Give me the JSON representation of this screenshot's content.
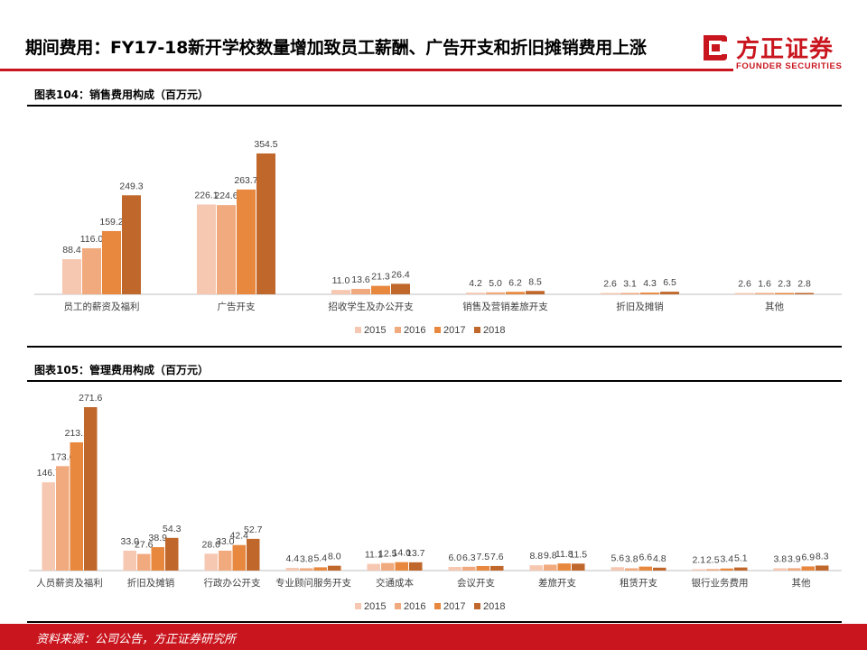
{
  "header": {
    "title": "期间费用：FY17-18新开学校数量增加致员工薪酬、广告开支和折旧摊销费用上涨"
  },
  "logo": {
    "name_cn": "方正证券",
    "name_en": "FOUNDER SECURITIES"
  },
  "colors": {
    "brand": "#c9151e",
    "series": [
      "#f6c8b1",
      "#f1a97e",
      "#e8873e",
      "#c0672b"
    ]
  },
  "footer": {
    "source": "资料来源：公司公告，方正证券研究所"
  },
  "chart_data": [
    {
      "caption": "图表104：销售费用构成（百万元）",
      "type": "bar",
      "categories": [
        "员工的薪资及福利",
        "广告开支",
        "招收学生及办公开支",
        "销售及营销差旅开支",
        "折旧及摊销",
        "其他"
      ],
      "series": [
        {
          "name": "2015",
          "values": [
            88.4,
            226.1,
            11.0,
            4.2,
            2.6,
            2.6
          ]
        },
        {
          "name": "2016",
          "values": [
            116.0,
            224.6,
            13.6,
            5.0,
            3.1,
            1.6
          ]
        },
        {
          "name": "2017",
          "values": [
            159.2,
            263.7,
            21.3,
            6.2,
            4.3,
            2.3
          ]
        },
        {
          "name": "2018",
          "values": [
            249.3,
            354.5,
            26.4,
            8.5,
            6.5,
            2.8
          ]
        }
      ],
      "ylim": [
        0,
        354.5
      ],
      "legend": "bottom",
      "grid": false
    },
    {
      "caption": "图表105：管理费用构成（百万元）",
      "type": "bar",
      "categories": [
        "人员薪资及福利",
        "折旧及摊销",
        "行政办公开支",
        "专业顾问服务开支",
        "交通成本",
        "会议开支",
        "差旅开支",
        "租赁开支",
        "银行业务费用",
        "其他"
      ],
      "series": [
        {
          "name": "2015",
          "values": [
            146.7,
            33.0,
            28.0,
            4.4,
            11.1,
            6.0,
            8.8,
            5.6,
            2.1,
            3.8
          ]
        },
        {
          "name": "2016",
          "values": [
            173.6,
            27.6,
            33.0,
            3.8,
            12.5,
            6.3,
            9.8,
            3.8,
            2.5,
            3.9
          ]
        },
        {
          "name": "2017",
          "values": [
            213.1,
            38.9,
            42.4,
            5.4,
            14.0,
            7.5,
            11.8,
            6.6,
            3.4,
            6.9
          ]
        },
        {
          "name": "2018",
          "values": [
            271.6,
            54.3,
            52.7,
            8.0,
            13.7,
            7.6,
            11.5,
            4.8,
            5.1,
            8.3
          ]
        }
      ],
      "ylim": [
        0,
        271.6
      ],
      "legend": "bottom",
      "grid": false
    }
  ]
}
